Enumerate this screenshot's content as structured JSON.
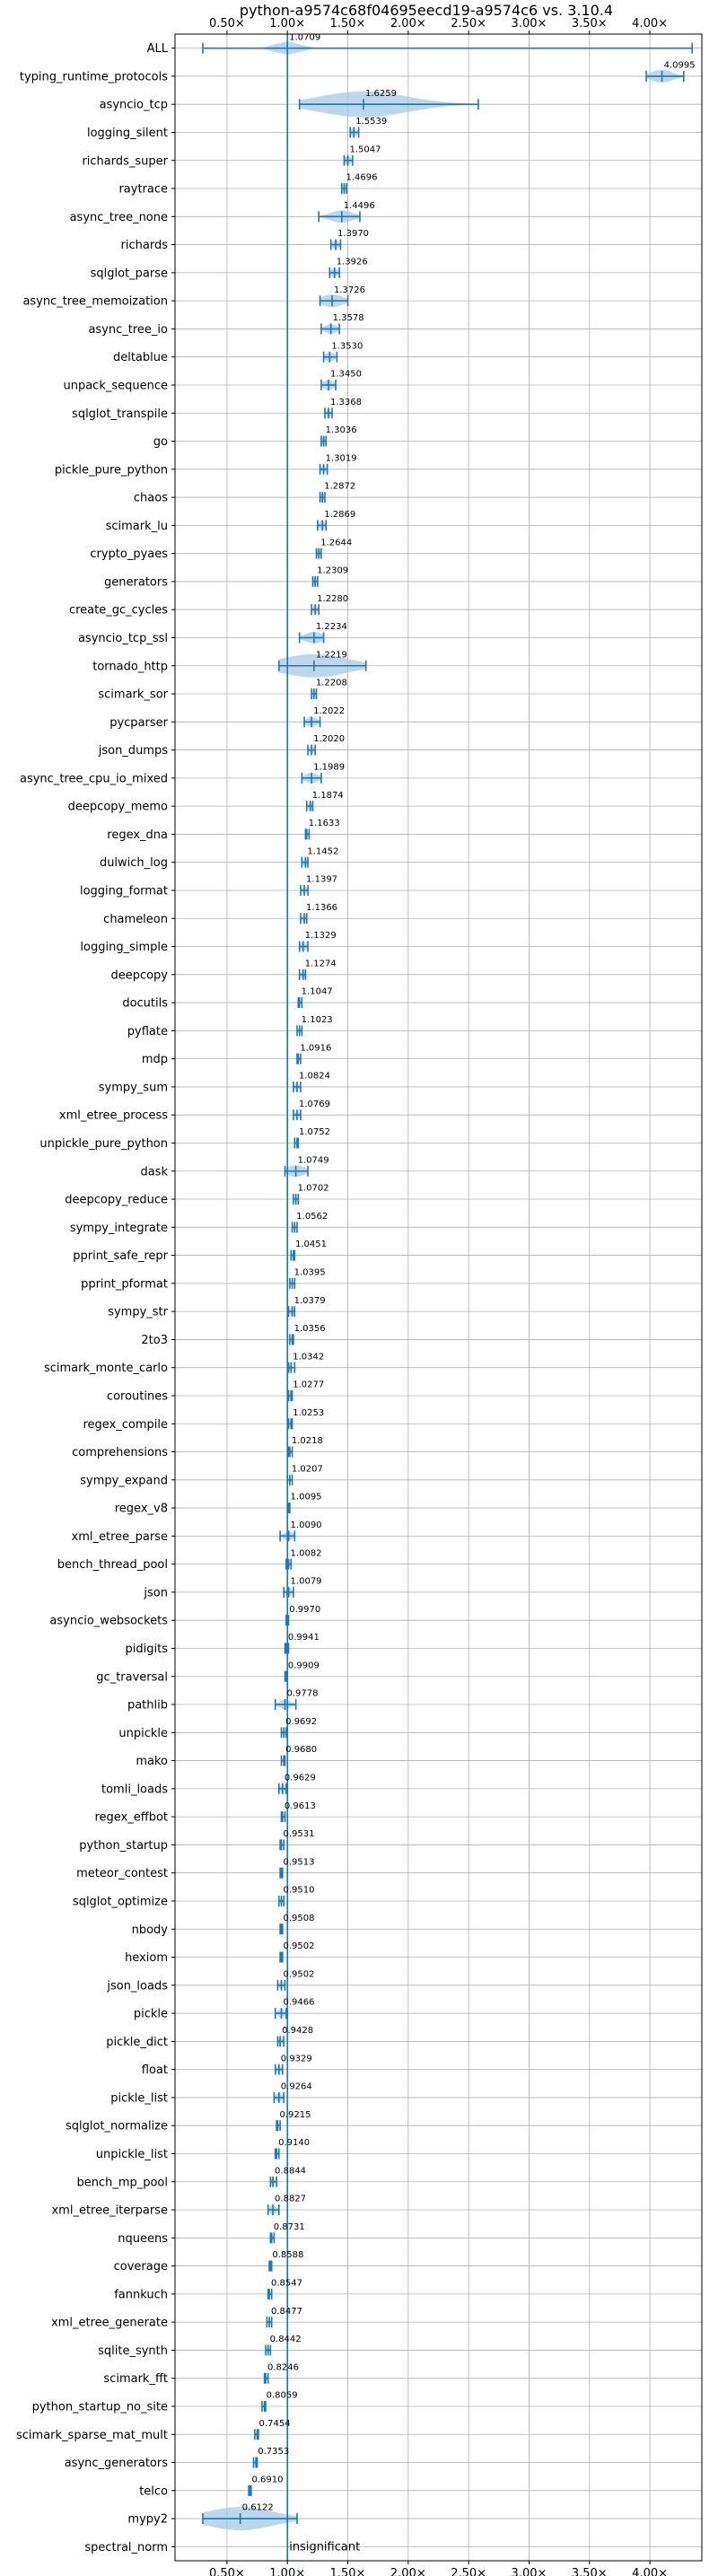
{
  "chart_data": {
    "type": "violin",
    "title": "python-a9574c68f04695eecd19-a9574c6 vs. 3.10.4",
    "x_ticks": [
      "0.50×",
      "1.00×",
      "1.50×",
      "2.00×",
      "2.50×",
      "3.00×",
      "3.50×",
      "4.00×"
    ],
    "x_tick_values": [
      0.5,
      1.0,
      1.5,
      2.0,
      2.5,
      3.0,
      3.5,
      4.0
    ],
    "xlim": [
      0.07,
      4.43
    ],
    "reference_line": 1.0,
    "grid": true,
    "colors": {
      "accent": "#1f77b4",
      "violin": "#a6c8e6",
      "grid": "#b0b0b0"
    },
    "benchmarks": [
      {
        "name": "ALL",
        "label": "1.0709",
        "median": 1.0,
        "lo": 0.3,
        "hi": 4.35,
        "spread": 0.11
      },
      {
        "name": "typing_runtime_protocols",
        "label": "4.0995",
        "median": 4.1,
        "lo": 3.97,
        "hi": 4.28,
        "spread": 0.1
      },
      {
        "name": "asyncio_tcp",
        "label": "1.6259",
        "median": 1.63,
        "lo": 1.1,
        "hi": 2.58,
        "spread": 0.4
      },
      {
        "name": "logging_silent",
        "label": "1.5539",
        "median": 1.55,
        "lo": 1.52,
        "hi": 1.59,
        "spread": 0.03
      },
      {
        "name": "richards_super",
        "label": "1.5047",
        "median": 1.5,
        "lo": 1.47,
        "hi": 1.54,
        "spread": 0.03
      },
      {
        "name": "raytrace",
        "label": "1.4696",
        "median": 1.47,
        "lo": 1.45,
        "hi": 1.49,
        "spread": 0.02
      },
      {
        "name": "async_tree_none",
        "label": "1.4496",
        "median": 1.45,
        "lo": 1.26,
        "hi": 1.6,
        "spread": 0.1
      },
      {
        "name": "richards",
        "label": "1.3970",
        "median": 1.4,
        "lo": 1.36,
        "hi": 1.44,
        "spread": 0.03
      },
      {
        "name": "sqlglot_parse",
        "label": "1.3926",
        "median": 1.39,
        "lo": 1.35,
        "hi": 1.43,
        "spread": 0.03
      },
      {
        "name": "async_tree_memoization",
        "label": "1.3726",
        "median": 1.37,
        "lo": 1.27,
        "hi": 1.5,
        "spread": 0.1
      },
      {
        "name": "async_tree_io",
        "label": "1.3578",
        "median": 1.36,
        "lo": 1.28,
        "hi": 1.43,
        "spread": 0.05
      },
      {
        "name": "deltablue",
        "label": "1.3530",
        "median": 1.35,
        "lo": 1.3,
        "hi": 1.41,
        "spread": 0.04
      },
      {
        "name": "unpack_sequence",
        "label": "1.3450",
        "median": 1.34,
        "lo": 1.28,
        "hi": 1.4,
        "spread": 0.05
      },
      {
        "name": "sqlglot_transpile",
        "label": "1.3368",
        "median": 1.34,
        "lo": 1.31,
        "hi": 1.37,
        "spread": 0.02
      },
      {
        "name": "go",
        "label": "1.3036",
        "median": 1.3,
        "lo": 1.28,
        "hi": 1.32,
        "spread": 0.02
      },
      {
        "name": "pickle_pure_python",
        "label": "1.3019",
        "median": 1.3,
        "lo": 1.27,
        "hi": 1.33,
        "spread": 0.02
      },
      {
        "name": "chaos",
        "label": "1.2872",
        "median": 1.29,
        "lo": 1.27,
        "hi": 1.31,
        "spread": 0.02
      },
      {
        "name": "scimark_lu",
        "label": "1.2869",
        "median": 1.29,
        "lo": 1.25,
        "hi": 1.32,
        "spread": 0.03
      },
      {
        "name": "crypto_pyaes",
        "label": "1.2644",
        "median": 1.26,
        "lo": 1.24,
        "hi": 1.28,
        "spread": 0.02
      },
      {
        "name": "generators",
        "label": "1.2309",
        "median": 1.23,
        "lo": 1.21,
        "hi": 1.25,
        "spread": 0.02
      },
      {
        "name": "create_gc_cycles",
        "label": "1.2280",
        "median": 1.23,
        "lo": 1.2,
        "hi": 1.26,
        "spread": 0.02
      },
      {
        "name": "asyncio_tcp_ssl",
        "label": "1.2234",
        "median": 1.22,
        "lo": 1.1,
        "hi": 1.3,
        "spread": 0.08
      },
      {
        "name": "tornado_http",
        "label": "1.2219",
        "median": 1.22,
        "lo": 0.93,
        "hi": 1.65,
        "spread": 0.3
      },
      {
        "name": "scimark_sor",
        "label": "1.2208",
        "median": 1.22,
        "lo": 1.2,
        "hi": 1.24,
        "spread": 0.02
      },
      {
        "name": "pycparser",
        "label": "1.2022",
        "median": 1.2,
        "lo": 1.14,
        "hi": 1.27,
        "spread": 0.05
      },
      {
        "name": "json_dumps",
        "label": "1.2020",
        "median": 1.2,
        "lo": 1.17,
        "hi": 1.23,
        "spread": 0.02
      },
      {
        "name": "async_tree_cpu_io_mixed",
        "label": "1.1989",
        "median": 1.2,
        "lo": 1.12,
        "hi": 1.28,
        "spread": 0.06
      },
      {
        "name": "deepcopy_memo",
        "label": "1.1874",
        "median": 1.19,
        "lo": 1.16,
        "hi": 1.21,
        "spread": 0.02
      },
      {
        "name": "regex_dna",
        "label": "1.1633",
        "median": 1.16,
        "lo": 1.15,
        "hi": 1.18,
        "spread": 0.01
      },
      {
        "name": "dulwich_log",
        "label": "1.1452",
        "median": 1.15,
        "lo": 1.12,
        "hi": 1.17,
        "spread": 0.02
      },
      {
        "name": "logging_format",
        "label": "1.1397",
        "median": 1.14,
        "lo": 1.11,
        "hi": 1.17,
        "spread": 0.02
      },
      {
        "name": "chameleon",
        "label": "1.1366",
        "median": 1.14,
        "lo": 1.11,
        "hi": 1.16,
        "spread": 0.02
      },
      {
        "name": "logging_simple",
        "label": "1.1329",
        "median": 1.13,
        "lo": 1.1,
        "hi": 1.17,
        "spread": 0.03
      },
      {
        "name": "deepcopy",
        "label": "1.1274",
        "median": 1.13,
        "lo": 1.1,
        "hi": 1.15,
        "spread": 0.02
      },
      {
        "name": "docutils",
        "label": "1.1047",
        "median": 1.1,
        "lo": 1.09,
        "hi": 1.12,
        "spread": 0.01
      },
      {
        "name": "pyflate",
        "label": "1.1023",
        "median": 1.1,
        "lo": 1.08,
        "hi": 1.12,
        "spread": 0.01
      },
      {
        "name": "mdp",
        "label": "1.0916",
        "median": 1.09,
        "lo": 1.08,
        "hi": 1.11,
        "spread": 0.01
      },
      {
        "name": "sympy_sum",
        "label": "1.0824",
        "median": 1.08,
        "lo": 1.05,
        "hi": 1.11,
        "spread": 0.02
      },
      {
        "name": "xml_etree_process",
        "label": "1.0769",
        "median": 1.08,
        "lo": 1.05,
        "hi": 1.11,
        "spread": 0.02
      },
      {
        "name": "unpickle_pure_python",
        "label": "1.0752",
        "median": 1.08,
        "lo": 1.06,
        "hi": 1.09,
        "spread": 0.01
      },
      {
        "name": "dask",
        "label": "1.0749",
        "median": 1.07,
        "lo": 0.98,
        "hi": 1.17,
        "spread": 0.08
      },
      {
        "name": "deepcopy_reduce",
        "label": "1.0702",
        "median": 1.07,
        "lo": 1.05,
        "hi": 1.09,
        "spread": 0.01
      },
      {
        "name": "sympy_integrate",
        "label": "1.0562",
        "median": 1.06,
        "lo": 1.04,
        "hi": 1.08,
        "spread": 0.01
      },
      {
        "name": "pprint_safe_repr",
        "label": "1.0451",
        "median": 1.05,
        "lo": 1.03,
        "hi": 1.06,
        "spread": 0.01
      },
      {
        "name": "pprint_pformat",
        "label": "1.0395",
        "median": 1.04,
        "lo": 1.02,
        "hi": 1.06,
        "spread": 0.01
      },
      {
        "name": "sympy_str",
        "label": "1.0379",
        "median": 1.04,
        "lo": 1.01,
        "hi": 1.06,
        "spread": 0.02
      },
      {
        "name": "2to3",
        "label": "1.0356",
        "median": 1.04,
        "lo": 1.02,
        "hi": 1.05,
        "spread": 0.01
      },
      {
        "name": "scimark_monte_carlo",
        "label": "1.0342",
        "median": 1.03,
        "lo": 1.01,
        "hi": 1.06,
        "spread": 0.01
      },
      {
        "name": "coroutines",
        "label": "1.0277",
        "median": 1.03,
        "lo": 1.01,
        "hi": 1.04,
        "spread": 0.01
      },
      {
        "name": "regex_compile",
        "label": "1.0253",
        "median": 1.03,
        "lo": 1.01,
        "hi": 1.04,
        "spread": 0.01
      },
      {
        "name": "comprehensions",
        "label": "1.0218",
        "median": 1.02,
        "lo": 1.01,
        "hi": 1.04,
        "spread": 0.01
      },
      {
        "name": "sympy_expand",
        "label": "1.0207",
        "median": 1.02,
        "lo": 1.0,
        "hi": 1.04,
        "spread": 0.01
      },
      {
        "name": "regex_v8",
        "label": "1.0095",
        "median": 1.01,
        "lo": 1.0,
        "hi": 1.02,
        "spread": 0.01
      },
      {
        "name": "xml_etree_parse",
        "label": "1.0090",
        "median": 1.01,
        "lo": 0.94,
        "hi": 1.06,
        "spread": 0.04
      },
      {
        "name": "bench_thread_pool",
        "label": "1.0082",
        "median": 1.01,
        "lo": 0.99,
        "hi": 1.03,
        "spread": 0.01
      },
      {
        "name": "json",
        "label": "1.0079",
        "median": 1.01,
        "lo": 0.97,
        "hi": 1.05,
        "spread": 0.03
      },
      {
        "name": "asyncio_websockets",
        "label": "0.9970",
        "median": 1.0,
        "lo": 0.99,
        "hi": 1.01,
        "spread": 0.01
      },
      {
        "name": "pidigits",
        "label": "0.9941",
        "median": 0.99,
        "lo": 0.98,
        "hi": 1.01,
        "spread": 0.01
      },
      {
        "name": "gc_traversal",
        "label": "0.9909",
        "median": 0.99,
        "lo": 0.98,
        "hi": 1.0,
        "spread": 0.01
      },
      {
        "name": "pathlib",
        "label": "0.9778",
        "median": 0.98,
        "lo": 0.9,
        "hi": 1.07,
        "spread": 0.05
      },
      {
        "name": "unpickle",
        "label": "0.9692",
        "median": 0.97,
        "lo": 0.95,
        "hi": 0.99,
        "spread": 0.01
      },
      {
        "name": "mako",
        "label": "0.9680",
        "median": 0.97,
        "lo": 0.95,
        "hi": 0.98,
        "spread": 0.01
      },
      {
        "name": "tomli_loads",
        "label": "0.9629",
        "median": 0.96,
        "lo": 0.93,
        "hi": 0.99,
        "spread": 0.02
      },
      {
        "name": "regex_effbot",
        "label": "0.9613",
        "median": 0.96,
        "lo": 0.95,
        "hi": 0.98,
        "spread": 0.01
      },
      {
        "name": "python_startup",
        "label": "0.9531",
        "median": 0.95,
        "lo": 0.94,
        "hi": 0.97,
        "spread": 0.01
      },
      {
        "name": "meteor_contest",
        "label": "0.9513",
        "median": 0.95,
        "lo": 0.94,
        "hi": 0.96,
        "spread": 0.01
      },
      {
        "name": "sqlglot_optimize",
        "label": "0.9510",
        "median": 0.95,
        "lo": 0.93,
        "hi": 0.97,
        "spread": 0.01
      },
      {
        "name": "nbody",
        "label": "0.9508",
        "median": 0.95,
        "lo": 0.94,
        "hi": 0.96,
        "spread": 0.01
      },
      {
        "name": "hexiom",
        "label": "0.9502",
        "median": 0.95,
        "lo": 0.94,
        "hi": 0.96,
        "spread": 0.01
      },
      {
        "name": "json_loads",
        "label": "0.9502",
        "median": 0.95,
        "lo": 0.92,
        "hi": 0.98,
        "spread": 0.02
      },
      {
        "name": "pickle",
        "label": "0.9466",
        "median": 0.95,
        "lo": 0.9,
        "hi": 0.99,
        "spread": 0.03
      },
      {
        "name": "pickle_dict",
        "label": "0.9428",
        "median": 0.94,
        "lo": 0.92,
        "hi": 0.97,
        "spread": 0.02
      },
      {
        "name": "float",
        "label": "0.9329",
        "median": 0.93,
        "lo": 0.9,
        "hi": 0.96,
        "spread": 0.02
      },
      {
        "name": "pickle_list",
        "label": "0.9264",
        "median": 0.93,
        "lo": 0.89,
        "hi": 0.97,
        "spread": 0.03
      },
      {
        "name": "sqlglot_normalize",
        "label": "0.9215",
        "median": 0.92,
        "lo": 0.91,
        "hi": 0.94,
        "spread": 0.01
      },
      {
        "name": "unpickle_list",
        "label": "0.9140",
        "median": 0.91,
        "lo": 0.9,
        "hi": 0.93,
        "spread": 0.01
      },
      {
        "name": "bench_mp_pool",
        "label": "0.8844",
        "median": 0.88,
        "lo": 0.86,
        "hi": 0.91,
        "spread": 0.02
      },
      {
        "name": "xml_etree_iterparse",
        "label": "0.8827",
        "median": 0.88,
        "lo": 0.84,
        "hi": 0.93,
        "spread": 0.03
      },
      {
        "name": "nqueens",
        "label": "0.8731",
        "median": 0.87,
        "lo": 0.86,
        "hi": 0.89,
        "spread": 0.01
      },
      {
        "name": "coverage",
        "label": "0.8588",
        "median": 0.86,
        "lo": 0.85,
        "hi": 0.87,
        "spread": 0.01
      },
      {
        "name": "fannkuch",
        "label": "0.8547",
        "median": 0.85,
        "lo": 0.84,
        "hi": 0.87,
        "spread": 0.01
      },
      {
        "name": "xml_etree_generate",
        "label": "0.8477",
        "median": 0.85,
        "lo": 0.83,
        "hi": 0.87,
        "spread": 0.01
      },
      {
        "name": "sqlite_synth",
        "label": "0.8442",
        "median": 0.84,
        "lo": 0.82,
        "hi": 0.86,
        "spread": 0.01
      },
      {
        "name": "scimark_fft",
        "label": "0.8246",
        "median": 0.82,
        "lo": 0.81,
        "hi": 0.84,
        "spread": 0.01
      },
      {
        "name": "python_startup_no_site",
        "label": "0.8059",
        "median": 0.81,
        "lo": 0.79,
        "hi": 0.82,
        "spread": 0.01
      },
      {
        "name": "scimark_sparse_mat_mult",
        "label": "0.7454",
        "median": 0.75,
        "lo": 0.73,
        "hi": 0.76,
        "spread": 0.01
      },
      {
        "name": "async_generators",
        "label": "0.7353",
        "median": 0.74,
        "lo": 0.72,
        "hi": 0.75,
        "spread": 0.01
      },
      {
        "name": "telco",
        "label": "0.6910",
        "median": 0.69,
        "lo": 0.68,
        "hi": 0.7,
        "spread": 0.01
      },
      {
        "name": "mypy2",
        "label": "0.6122",
        "median": 0.61,
        "lo": 0.3,
        "hi": 1.08,
        "spread": 0.3
      },
      {
        "name": "spectral_norm",
        "label": "insignificant",
        "median": null,
        "lo": null,
        "hi": null,
        "spread": 0
      }
    ]
  }
}
